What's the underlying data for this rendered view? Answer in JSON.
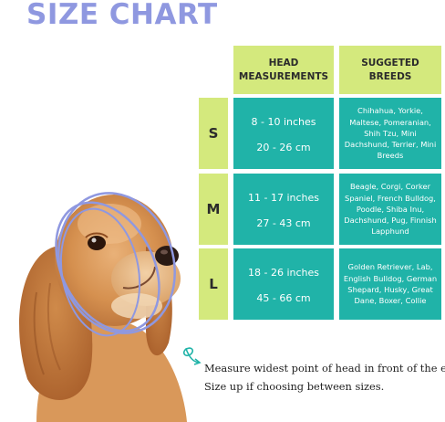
{
  "title": "SIZE CHART",
  "headers": {
    "head_measurements": [
      "HEAD",
      "MEASUREMENTS"
    ],
    "suggested_breeds": [
      "SUGGETED",
      "BREEDS"
    ]
  },
  "sizes": [
    {
      "label": "S",
      "inches": "8 - 10 inches",
      "cm": "20 - 26 cm",
      "breeds": "Chihahua, Yorkie, Maltese, Pomeranian, Shih Tzu, Mini Dachshund, Terrier, Mini Breeds"
    },
    {
      "label": "M",
      "inches": "11 - 17 inches",
      "cm": "27 - 43 cm",
      "breeds": "Beagle, Corgi, Corker Spaniel, French Bulldog, Poodle, Shiba Inu, Dachshund, Pug, Finnish Lapphund"
    },
    {
      "label": "L",
      "inches": "18 - 26 inches",
      "cm": "45 - 66 cm",
      "breeds": "Golden Retriever, Lab, English Bulldog, German Shepard, Husky, Great Dane, Boxer, Collie"
    }
  ],
  "instructions": {
    "line1": "Measure widest point of head in front of the ears.",
    "line2": "Size up if choosing between sizes."
  },
  "colors": {
    "title": "#8f98e0",
    "header_bg": "#d4e97d",
    "cell_bg": "#20b3a8",
    "measure_lines": "#8f98e0",
    "arrow": "#20b3a8"
  }
}
